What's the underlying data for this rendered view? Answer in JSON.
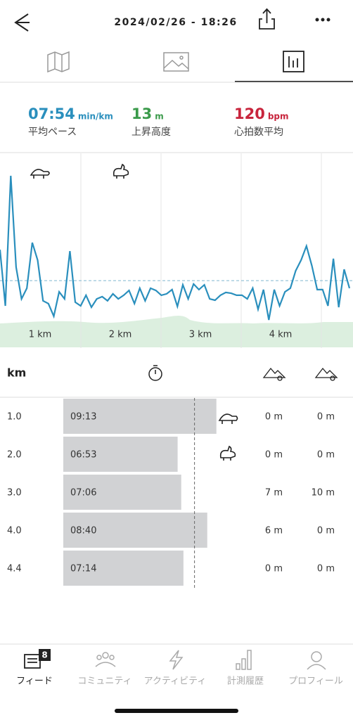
{
  "header": {
    "datetime": "2024/02/26 - 18:26"
  },
  "stats": [
    {
      "value": "07:54",
      "unit": "min/km",
      "label": "平均ペース",
      "color": "#2a8fbd"
    },
    {
      "value": "13",
      "unit": "m",
      "label": "上昇高度",
      "color": "#3a9a4a"
    },
    {
      "value": "120",
      "unit": "bpm",
      "label": "心拍数平均",
      "color": "#c8243c"
    }
  ],
  "pace_chart": {
    "type": "line",
    "color": "#2a8fbd",
    "ylim": [
      5.5,
      12.43
    ],
    "x_labels": [
      "1 km",
      "2 km",
      "3 km",
      "4 km"
    ],
    "values": [
      9.0,
      7.0,
      11.63,
      8.38,
      7.25,
      7.63,
      9.25,
      8.63,
      7.18,
      7.08,
      6.63,
      7.5,
      7.25,
      8.95,
      7.13,
      7.0,
      7.38,
      6.95,
      7.25,
      7.33,
      7.18,
      7.43,
      7.25,
      7.38,
      7.55,
      7.08,
      7.63,
      7.18,
      7.63,
      7.55,
      7.38,
      7.43,
      7.58,
      6.98,
      7.75,
      7.25,
      7.78,
      7.58,
      7.75,
      7.25,
      7.2,
      7.38,
      7.48,
      7.45,
      7.38,
      7.38,
      7.25,
      7.63,
      6.88,
      7.58,
      6.5,
      7.58,
      7.0,
      7.5,
      7.63,
      8.25,
      8.63,
      9.13,
      8.43,
      7.58,
      7.58,
      7.0,
      8.68,
      6.95,
      8.3,
      7.63
    ]
  },
  "splits": {
    "header": "km",
    "rows": [
      [
        "1.0",
        "09:13",
        "0 m",
        "0 m"
      ],
      [
        "2.0",
        "06:53",
        "0 m",
        "0 m"
      ],
      [
        "3.0",
        "07:06",
        "7 m",
        "10 m"
      ],
      [
        "4.0",
        "08:40",
        "6 m",
        "0 m"
      ],
      [
        "4.4",
        "07:14",
        "0 m",
        "0 m"
      ]
    ]
  },
  "nav": {
    "badge": "8",
    "items": [
      "フィード",
      "コミュニティ",
      "アクティビティ",
      "計測履歴",
      "プロフィール"
    ]
  }
}
